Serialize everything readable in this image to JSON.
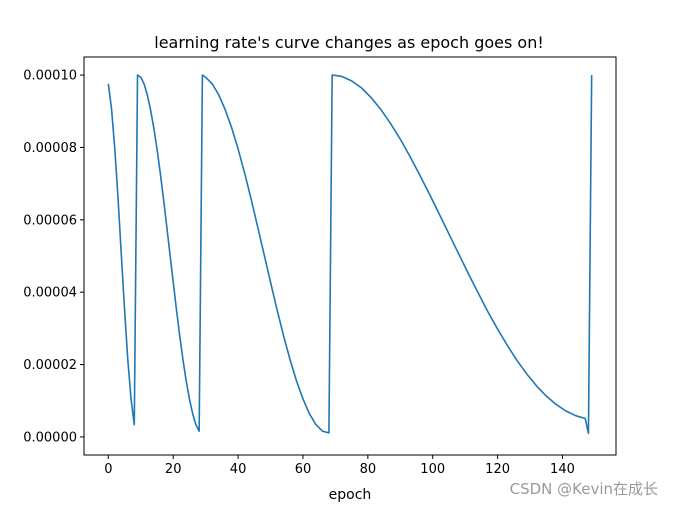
{
  "chart_data": {
    "type": "line",
    "title": "learning rate's curve changes as epoch goes on!",
    "xlabel": "epoch",
    "ylabel": "",
    "xlim": [
      -7.5,
      156.5
    ],
    "ylim": [
      -5e-06,
      0.000105
    ],
    "xticks": [
      0,
      20,
      40,
      60,
      80,
      100,
      120,
      140
    ],
    "xtick_labels": [
      "0",
      "20",
      "40",
      "60",
      "80",
      "100",
      "120",
      "140"
    ],
    "yticks": [
      0.0,
      2e-05,
      4e-05,
      6e-05,
      8e-05,
      0.0001
    ],
    "ytick_labels": [
      "0.00000",
      "0.00002",
      "0.00004",
      "0.00006",
      "0.00008",
      "0.00010"
    ],
    "grid": false,
    "line_color": "#1f77b4",
    "series": [
      {
        "x": [
          0,
          1,
          2,
          3,
          4,
          5,
          6,
          7,
          8,
          9,
          10,
          11,
          12,
          13,
          14,
          15,
          16,
          17,
          18,
          19,
          20,
          21,
          22,
          23,
          24,
          25,
          26,
          27,
          28,
          29,
          30,
          32,
          34,
          36,
          38,
          40,
          42,
          44,
          46,
          48,
          50,
          52,
          54,
          56,
          58,
          60,
          62,
          64,
          66,
          68,
          69,
          70,
          72,
          75,
          78,
          81,
          84,
          87,
          90,
          93,
          96,
          99,
          102,
          105,
          108,
          111,
          114,
          117,
          120,
          123,
          126,
          129,
          132,
          135,
          138,
          141,
          144,
          147,
          148,
          149
        ],
        "y": [
          9.76e-05,
          9.05e-05,
          7.96e-05,
          6.58e-05,
          5.05e-05,
          3.52e-05,
          2.14e-05,
          1.05e-05,
          3.4e-06,
          0.0001,
          9.94e-05,
          9.76e-05,
          9.46e-05,
          9.05e-05,
          8.55e-05,
          7.96e-05,
          7.3e-05,
          6.58e-05,
          5.82e-05,
          5.05e-05,
          4.28e-05,
          3.52e-05,
          2.8e-05,
          2.14e-05,
          1.55e-05,
          1.05e-05,
          6.4e-06,
          3.4e-06,
          1.6e-06,
          0.0001,
          9.94e-05,
          9.76e-05,
          9.46e-05,
          9.05e-05,
          8.55e-05,
          7.96e-05,
          7.3e-05,
          6.58e-05,
          5.82e-05,
          5.05e-05,
          4.28e-05,
          3.52e-05,
          2.8e-05,
          2.14e-05,
          1.55e-05,
          1.05e-05,
          6.4e-06,
          3.4e-06,
          1.6e-06,
          1.1e-06,
          0.0001,
          9.99e-05,
          9.96e-05,
          9.84e-05,
          9.65e-05,
          9.38e-05,
          9.05e-05,
          8.66e-05,
          8.23e-05,
          7.75e-05,
          7.24e-05,
          6.71e-05,
          6.16e-05,
          5.61e-05,
          5.06e-05,
          4.51e-05,
          3.98e-05,
          3.46e-05,
          2.98e-05,
          2.53e-05,
          2.11e-05,
          1.74e-05,
          1.41e-05,
          1.13e-05,
          9e-06,
          7.2e-06,
          5.9e-06,
          5.1e-06,
          1e-06,
          0.0001
        ]
      }
    ]
  },
  "watermark": "CSDN @Kevin在成长"
}
